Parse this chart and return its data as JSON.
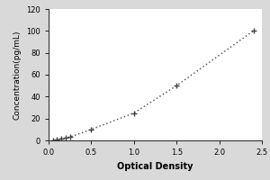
{
  "x_data": [
    0.05,
    0.1,
    0.15,
    0.2,
    0.25,
    0.5,
    1.0,
    1.5,
    2.4
  ],
  "y_data": [
    0.3,
    0.8,
    1.5,
    2.2,
    3.0,
    10.0,
    25.0,
    50.0,
    100.0
  ],
  "xlabel": "Optical Density",
  "ylabel": "Concentration(pg/mL)",
  "xlim": [
    0,
    2.5
  ],
  "ylim": [
    0,
    120
  ],
  "xticks": [
    0,
    0.5,
    1,
    1.5,
    2,
    2.5
  ],
  "yticks": [
    0,
    20,
    40,
    60,
    80,
    100,
    120
  ],
  "line_color": "#444444",
  "marker": "+",
  "marker_size": 4,
  "background_color": "#d9d9d9",
  "plot_background": "#ffffff",
  "xlabel_fontsize": 7,
  "ylabel_fontsize": 6.5,
  "tick_fontsize": 6,
  "xlabel_fontweight": "bold",
  "ylabel_fontweight": "normal"
}
